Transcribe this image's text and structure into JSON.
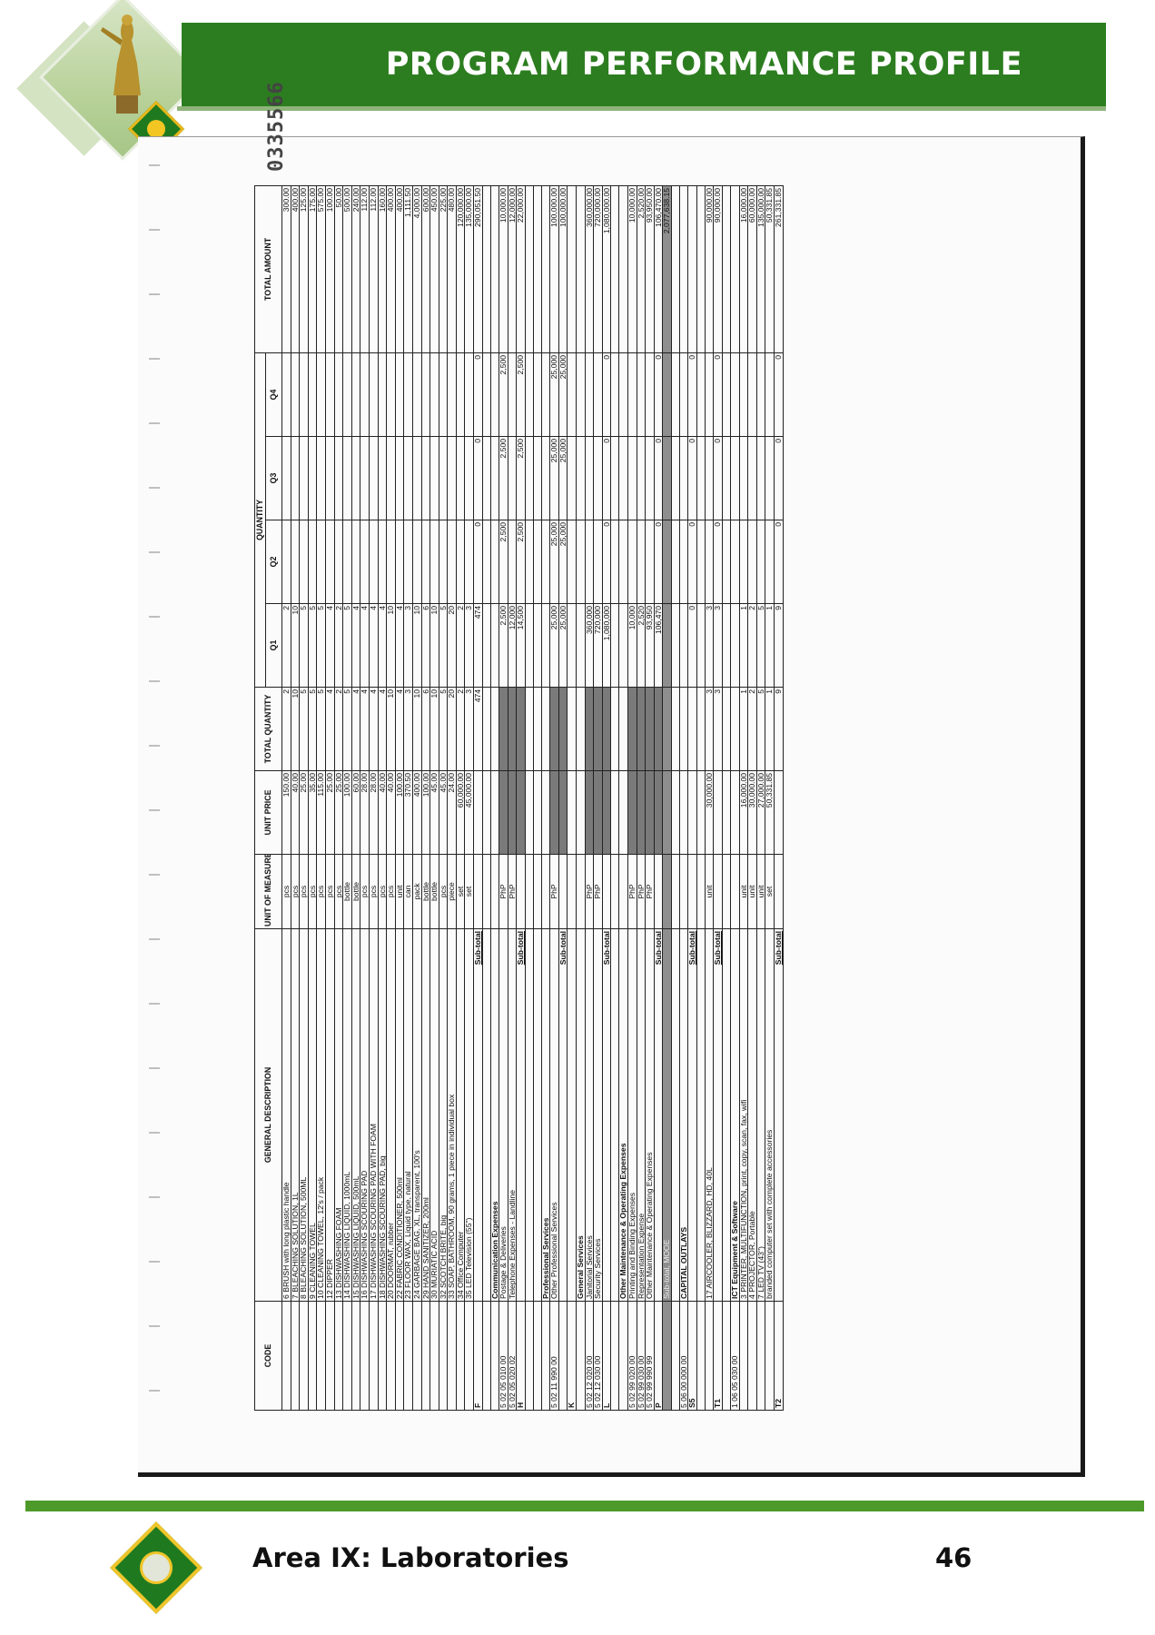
{
  "header": {
    "title": "PROGRAM PERFORMANCE PROFILE"
  },
  "footer": {
    "area": "Area IX: Laboratories",
    "page_number": "46"
  },
  "document": {
    "doc_number": "0335566",
    "columns": {
      "code": "CODE",
      "general_description": "GENERAL DESCRIPTION",
      "unit_of_measure": "UNIT OF MEASURE",
      "unit_price": "UNIT PRICE",
      "total_quantity": "TOTAL QUANTITY",
      "quantity": "QUANTITY",
      "q1": "Q1",
      "q2": "Q2",
      "q3": "Q3",
      "q4": "Q4",
      "total_amount": "TOTAL AMOUNT"
    },
    "rows": [
      {
        "type": "item",
        "code": "",
        "desc": "6 BRUSH with long plastic handle",
        "uom": "pcs",
        "price": "150.00",
        "tq": "2",
        "q1": "2",
        "q2": "",
        "q3": "",
        "q4": "",
        "amt": "300.00"
      },
      {
        "type": "item",
        "code": "",
        "desc": "7 BLEACHING SOLUTION, 1L",
        "uom": "pcs",
        "price": "40.00",
        "tq": "10",
        "q1": "10",
        "q2": "",
        "q3": "",
        "q4": "",
        "amt": "400.00"
      },
      {
        "type": "item",
        "code": "",
        "desc": "8 BLEACHING SOLUTION, 500ML",
        "uom": "pcs",
        "price": "25.00",
        "tq": "5",
        "q1": "5",
        "q2": "",
        "q3": "",
        "q4": "",
        "amt": "125.00"
      },
      {
        "type": "item",
        "code": "",
        "desc": "9 CLEANING TOWEL",
        "uom": "pcs",
        "price": "35.00",
        "tq": "5",
        "q1": "5",
        "q2": "",
        "q3": "",
        "q4": "",
        "amt": "175.00"
      },
      {
        "type": "item",
        "code": "",
        "desc": "10 CLEANING TOWEL, 12's / pack",
        "uom": "pcs",
        "price": "115.00",
        "tq": "5",
        "q1": "5",
        "q2": "",
        "q3": "",
        "q4": "",
        "amt": "575.00"
      },
      {
        "type": "item",
        "code": "",
        "desc": "12 DIPPER",
        "uom": "pcs",
        "price": "25.00",
        "tq": "4",
        "q1": "4",
        "q2": "",
        "q3": "",
        "q4": "",
        "amt": "100.00"
      },
      {
        "type": "item",
        "code": "",
        "desc": "13 DISHWASHING FOAM",
        "uom": "pcs",
        "price": "25.00",
        "tq": "2",
        "q1": "2",
        "q2": "",
        "q3": "",
        "q4": "",
        "amt": "50.00"
      },
      {
        "type": "item",
        "code": "",
        "desc": "14 DISHWASHING LIQUID, 1000mL",
        "uom": "bottle",
        "price": "100.00",
        "tq": "5",
        "q1": "5",
        "q2": "",
        "q3": "",
        "q4": "",
        "amt": "500.00"
      },
      {
        "type": "item",
        "code": "",
        "desc": "15 DISHWASHING LIQUID, 500mL",
        "uom": "bottle",
        "price": "60.00",
        "tq": "4",
        "q1": "4",
        "q2": "",
        "q3": "",
        "q4": "",
        "amt": "240.00"
      },
      {
        "type": "item",
        "code": "",
        "desc": "16 DISHWASHING SCOURING PAD",
        "uom": "pcs",
        "price": "28.00",
        "tq": "4",
        "q1": "4",
        "q2": "",
        "q3": "",
        "q4": "",
        "amt": "112.00"
      },
      {
        "type": "item",
        "code": "",
        "desc": "17 DISHWASHING SCOURING PAD WITH FOAM",
        "uom": "pcs",
        "price": "28.00",
        "tq": "4",
        "q1": "4",
        "q2": "",
        "q3": "",
        "q4": "",
        "amt": "112.00"
      },
      {
        "type": "item",
        "code": "",
        "desc": "18 DISHWASHING SCOURING PAD, big",
        "uom": "pcs",
        "price": "40.00",
        "tq": "4",
        "q1": "4",
        "q2": "",
        "q3": "",
        "q4": "",
        "amt": "160.00"
      },
      {
        "type": "item",
        "code": "",
        "desc": "20 DOORMAT, rubber",
        "uom": "pcs",
        "price": "40.00",
        "tq": "10",
        "q1": "10",
        "q2": "",
        "q3": "",
        "q4": "",
        "amt": "400.00"
      },
      {
        "type": "item",
        "code": "",
        "desc": "22 FABRIC CONDITIONER, 500ml",
        "uom": "unit",
        "price": "100.00",
        "tq": "4",
        "q1": "4",
        "q2": "",
        "q3": "",
        "q4": "",
        "amt": "400.00"
      },
      {
        "type": "item",
        "code": "",
        "desc": "23 FLOOR WAX, Liquid type, natural",
        "uom": "can",
        "price": "370.50",
        "tq": "3",
        "q1": "3",
        "q2": "",
        "q3": "",
        "q4": "",
        "amt": "1,111.50"
      },
      {
        "type": "item",
        "code": "",
        "desc": "24 GARBAGE BAG, XL, transparent, 100's",
        "uom": "pack",
        "price": "400.00",
        "tq": "10",
        "q1": "10",
        "q2": "",
        "q3": "",
        "q4": "",
        "amt": "4,000.00"
      },
      {
        "type": "item",
        "code": "",
        "desc": "29 HAND SANITIZER, 200ml",
        "uom": "bottle",
        "price": "100.00",
        "tq": "6",
        "q1": "6",
        "q2": "",
        "q3": "",
        "q4": "",
        "amt": "600.00"
      },
      {
        "type": "item",
        "code": "",
        "desc": "30 MURIATIC ACID",
        "uom": "bottle",
        "price": "45.00",
        "tq": "10",
        "q1": "10",
        "q2": "",
        "q3": "",
        "q4": "",
        "amt": "450.00"
      },
      {
        "type": "item",
        "code": "",
        "desc": "32 SCOTCH BRITE, big",
        "uom": "pcs",
        "price": "45.00",
        "tq": "5",
        "q1": "5",
        "q2": "",
        "q3": "",
        "q4": "",
        "amt": "225.00"
      },
      {
        "type": "item",
        "code": "",
        "desc": "33 SOAP, BATHROOM, 90 grams, 1 piece in individual box",
        "uom": "piece",
        "price": "24.00",
        "tq": "20",
        "q1": "20",
        "q2": "",
        "q3": "",
        "q4": "",
        "amt": "480.00"
      },
      {
        "type": "item",
        "code": "",
        "desc": "34 Office Computer",
        "uom": "set",
        "price": "60,000.00",
        "tq": "2",
        "q1": "2",
        "q2": "",
        "q3": "",
        "q4": "",
        "amt": "120,000.00"
      },
      {
        "type": "item",
        "code": "",
        "desc": "35 LED Television (55\")",
        "uom": "set",
        "price": "45,000.00",
        "tq": "3",
        "q1": "3",
        "q2": "",
        "q3": "",
        "q4": "",
        "amt": "135,000.00"
      },
      {
        "type": "subtotal",
        "code": "F",
        "desc": "Sub-total",
        "uom": "",
        "price": "",
        "tq": "474",
        "q1": "474",
        "q2": "0",
        "q3": "0",
        "q4": "0",
        "amt": "290,051.50"
      },
      {
        "type": "blank"
      },
      {
        "type": "section",
        "code": "",
        "desc": "Communication Expenses"
      },
      {
        "type": "item",
        "shade": true,
        "code": "5 02 05 010 00",
        "desc": "Postage & Deliveries",
        "uom": "PhP",
        "price": "",
        "tq": "",
        "q1": "2,500",
        "q2": "2,500",
        "q3": "2,500",
        "q4": "2,500",
        "amt": "10,000.00"
      },
      {
        "type": "item",
        "shade": true,
        "code": "5 02 05 020 02",
        "desc": "Telephone Expenses - Landline",
        "uom": "PhP",
        "price": "",
        "tq": "",
        "q1": "12,000",
        "q2": "",
        "q3": "",
        "q4": "",
        "amt": "12,000.00"
      },
      {
        "type": "subtotal",
        "shade": true,
        "code": "H",
        "desc": "Sub-total",
        "uom": "",
        "price": "",
        "tq": "",
        "q1": "14,500",
        "q2": "2,500",
        "q3": "2,500",
        "q4": "2,500",
        "amt": "22,000.00"
      },
      {
        "type": "blank"
      },
      {
        "type": "blank"
      },
      {
        "type": "section",
        "code": "",
        "desc": "Professional Services"
      },
      {
        "type": "item",
        "shade": true,
        "code": "5 02 11 990 00",
        "desc": "Other Professional Services",
        "uom": "PhP",
        "price": "",
        "tq": "",
        "q1": "25,000",
        "q2": "25,000",
        "q3": "25,000",
        "q4": "25,000",
        "amt": "100,000.00"
      },
      {
        "type": "subtotal",
        "shade": true,
        "code": "",
        "desc": "Sub-total",
        "uom": "",
        "price": "",
        "tq": "",
        "q1": "25,000",
        "q2": "25,000",
        "q3": "25,000",
        "q4": "25,000",
        "amt": "100,000.00"
      },
      {
        "type": "blank",
        "code": "K"
      },
      {
        "type": "section",
        "code": "",
        "desc": "General Services"
      },
      {
        "type": "item",
        "shade": true,
        "code": "5 02 12 020 00",
        "desc": "Janitorial Services",
        "uom": "PhP",
        "price": "",
        "tq": "",
        "q1": "360,000",
        "q2": "",
        "q3": "",
        "q4": "",
        "amt": "360,000.00"
      },
      {
        "type": "item",
        "shade": true,
        "code": "5 02 12 030 00",
        "desc": "Security Services",
        "uom": "PhP",
        "price": "",
        "tq": "",
        "q1": "720,000",
        "q2": "",
        "q3": "",
        "q4": "",
        "amt": "720,000.00"
      },
      {
        "type": "subtotal",
        "shade": true,
        "code": "L",
        "desc": "Sub-total",
        "uom": "",
        "price": "",
        "tq": "",
        "q1": "1,080,000",
        "q2": "0",
        "q3": "0",
        "q4": "0",
        "amt": "1,080,000.00"
      },
      {
        "type": "blank"
      },
      {
        "type": "section",
        "code": "",
        "desc": "Other Maintenance & Operating Expenses"
      },
      {
        "type": "item",
        "shade": true,
        "code": "5 02 99 020 00",
        "desc": "Printing and Binding Expenses",
        "uom": "PhP",
        "price": "",
        "tq": "",
        "q1": "10,000",
        "q2": "",
        "q3": "",
        "q4": "",
        "amt": "10,000.00"
      },
      {
        "type": "item",
        "shade": true,
        "code": "5 02 99 030 00",
        "desc": "Representation Expense",
        "uom": "PhP",
        "price": "",
        "tq": "",
        "q1": "2,520",
        "q2": "",
        "q3": "",
        "q4": "",
        "amt": "2,520.00"
      },
      {
        "type": "item",
        "shade": true,
        "code": "5 02 99 990 99",
        "desc": "Other Maintenance & Operating Expenses",
        "uom": "PhP",
        "price": "",
        "tq": "",
        "q1": "93,950",
        "q2": "",
        "q3": "",
        "q4": "",
        "amt": "93,950.00"
      },
      {
        "type": "subtotal",
        "shade": true,
        "code": "P",
        "desc": "Sub-total",
        "uom": "",
        "price": "",
        "tq": "",
        "q1": "106,470",
        "q2": "0",
        "q3": "0",
        "q4": "0",
        "amt": "106,470.00"
      },
      {
        "type": "mooe",
        "code": "",
        "desc": "Sub-total, MOOE",
        "uom": "",
        "price": "",
        "tq": "",
        "q1": "",
        "q2": "",
        "q3": "",
        "q4": "",
        "amt": "2,077,638.15"
      },
      {
        "type": "blank"
      },
      {
        "type": "section",
        "code": "5 06 00 000 00",
        "desc": "CAPITAL OUTLAYS"
      },
      {
        "type": "subtotal",
        "code": "S5",
        "desc": "Sub-total",
        "uom": "",
        "price": "",
        "tq": "",
        "q1": "0",
        "q2": "0",
        "q3": "0",
        "q4": "0",
        "amt": ""
      },
      {
        "type": "blank"
      },
      {
        "type": "item",
        "code": "",
        "desc": "17 AIRCOOLER, BLIZZARD, HD, 40L",
        "uom": "unit",
        "price": "30,000.00",
        "tq": "3",
        "q1": "3",
        "q2": "",
        "q3": "",
        "q4": "",
        "amt": "90,000.00"
      },
      {
        "type": "subtotal",
        "code": "T1",
        "desc": "Sub-total",
        "uom": "",
        "price": "",
        "tq": "3",
        "q1": "3",
        "q2": "0",
        "q3": "0",
        "q4": "0",
        "amt": "90,000.00"
      },
      {
        "type": "blank"
      },
      {
        "type": "section",
        "code": "1 06 05 030 00",
        "desc": "ICT Equipment & Software"
      },
      {
        "type": "item",
        "code": "",
        "desc": "3 PRINTER, MULTIFUNCTION, print, copy, scan, fax, wifi",
        "uom": "unit",
        "price": "16,000.00",
        "tq": "1",
        "q1": "1",
        "q2": "",
        "q3": "",
        "q4": "",
        "amt": "16,000.00"
      },
      {
        "type": "item",
        "code": "",
        "desc": "4 PROJECTOR, Portable",
        "uom": "unit",
        "price": "30,000.00",
        "tq": "2",
        "q1": "2",
        "q2": "",
        "q3": "",
        "q4": "",
        "amt": "60,000.00"
      },
      {
        "type": "item",
        "code": "",
        "desc": "7 LED TV (43\")",
        "uom": "unit",
        "price": "27,000.00",
        "tq": "5",
        "q1": "5",
        "q2": "",
        "q3": "",
        "q4": "",
        "amt": "135,000.00"
      },
      {
        "type": "item",
        "code": "",
        "desc": "branded computer set with complete accessories",
        "uom": "set",
        "price": "50,331.85",
        "tq": "1",
        "q1": "1",
        "q2": "",
        "q3": "",
        "q4": "",
        "amt": "50,331.85"
      },
      {
        "type": "subtotal",
        "code": "T2",
        "desc": "Sub-total",
        "uom": "",
        "price": "",
        "tq": "9",
        "q1": "9",
        "q2": "0",
        "q3": "0",
        "q4": "0",
        "amt": "261,331.85"
      }
    ]
  }
}
